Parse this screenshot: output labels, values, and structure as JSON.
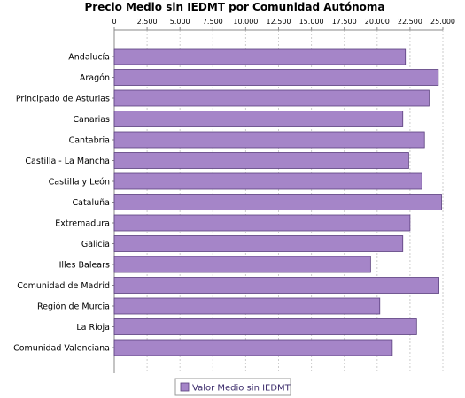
{
  "chart_data": {
    "type": "bar",
    "orientation": "horizontal",
    "title": "Precio Medio sin IEDMT por Comunidad Autónoma",
    "categories": [
      "Andalucía",
      "Aragón",
      "Principado de Asturias",
      "Canarias",
      "Cantabria",
      "Castilla - La Mancha",
      "Castilla y León",
      "Cataluña",
      "Extremadura",
      "Galicia",
      "Illes Balears",
      "Comunidad de Madrid",
      "Región de Murcia",
      "La Rioja",
      "Comunidad Valenciana"
    ],
    "series": [
      {
        "name": "Valor Medio sin IEDMT",
        "values": [
          22150,
          24650,
          23950,
          21950,
          23600,
          22400,
          23400,
          24900,
          22500,
          21950,
          19500,
          24700,
          20200,
          23000,
          21150
        ]
      }
    ],
    "xlim": [
      0,
      25000
    ],
    "x_ticks": [
      0,
      2500,
      5000,
      7500,
      10000,
      12500,
      15000,
      17500,
      20000,
      22500,
      25000
    ],
    "x_tick_labels": [
      "0",
      "2.500",
      "5.000",
      "7.500",
      "10.000",
      "12.500",
      "15.000",
      "17.500",
      "20.000",
      "22.500",
      "25.000"
    ],
    "x_axis_position": "top",
    "grid": true,
    "legend_position": "bottom",
    "colors": {
      "bar_fill": "#a585c8",
      "bar_stroke": "#5a3f7e",
      "grid": "#cccccc",
      "axis": "#888888"
    }
  }
}
